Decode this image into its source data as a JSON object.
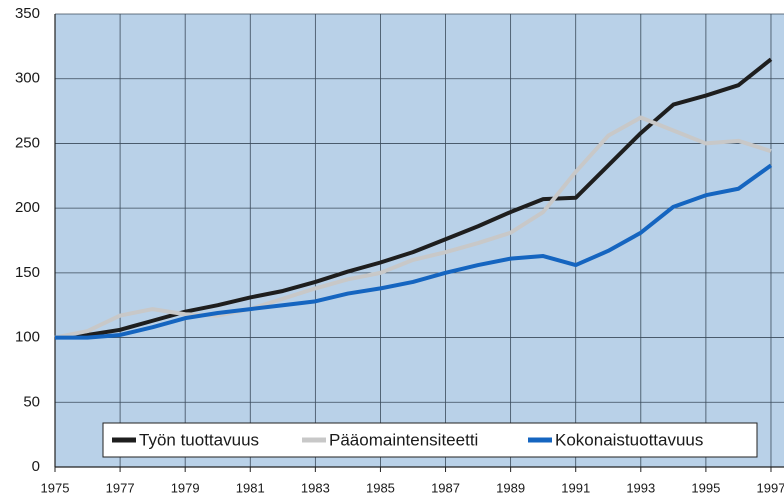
{
  "chart_data": {
    "type": "line",
    "x": [
      1975,
      1976,
      1977,
      1978,
      1979,
      1980,
      1981,
      1982,
      1983,
      1984,
      1985,
      1986,
      1987,
      1988,
      1989,
      1990,
      1991,
      1992,
      1993,
      1994,
      1995,
      1996,
      1997
    ],
    "series": [
      {
        "name": "Työn tuottavuus",
        "color": "#1e1e1e",
        "values": [
          100,
          102,
          106,
          113,
          120,
          125,
          131,
          136,
          143,
          151,
          158,
          166,
          176,
          186,
          197,
          207,
          208,
          233,
          258,
          280,
          287,
          295,
          315
        ]
      },
      {
        "name": "Pääomaintensiteetti",
        "color": "#c8c8c8",
        "values": [
          100,
          105,
          117,
          122,
          118,
          117,
          122,
          130,
          138,
          145,
          150,
          160,
          166,
          173,
          181,
          197,
          228,
          256,
          270,
          260,
          250,
          252,
          244
        ]
      },
      {
        "name": "Kokonaistuottavuus",
        "color": "#1565c0",
        "values": [
          100,
          100,
          102,
          108,
          115,
          119,
          122,
          125,
          128,
          134,
          138,
          143,
          150,
          156,
          161,
          163,
          156,
          167,
          181,
          201,
          210,
          215,
          233
        ]
      }
    ],
    "xlim": [
      1975,
      1997.4
    ],
    "xticks": [
      1975,
      1977,
      1979,
      1981,
      1983,
      1985,
      1987,
      1989,
      1991,
      1993,
      1995,
      1997
    ],
    "ylim": [
      0,
      350
    ],
    "yticks": [
      0,
      50,
      100,
      150,
      200,
      250,
      300,
      350
    ],
    "grid": true
  }
}
